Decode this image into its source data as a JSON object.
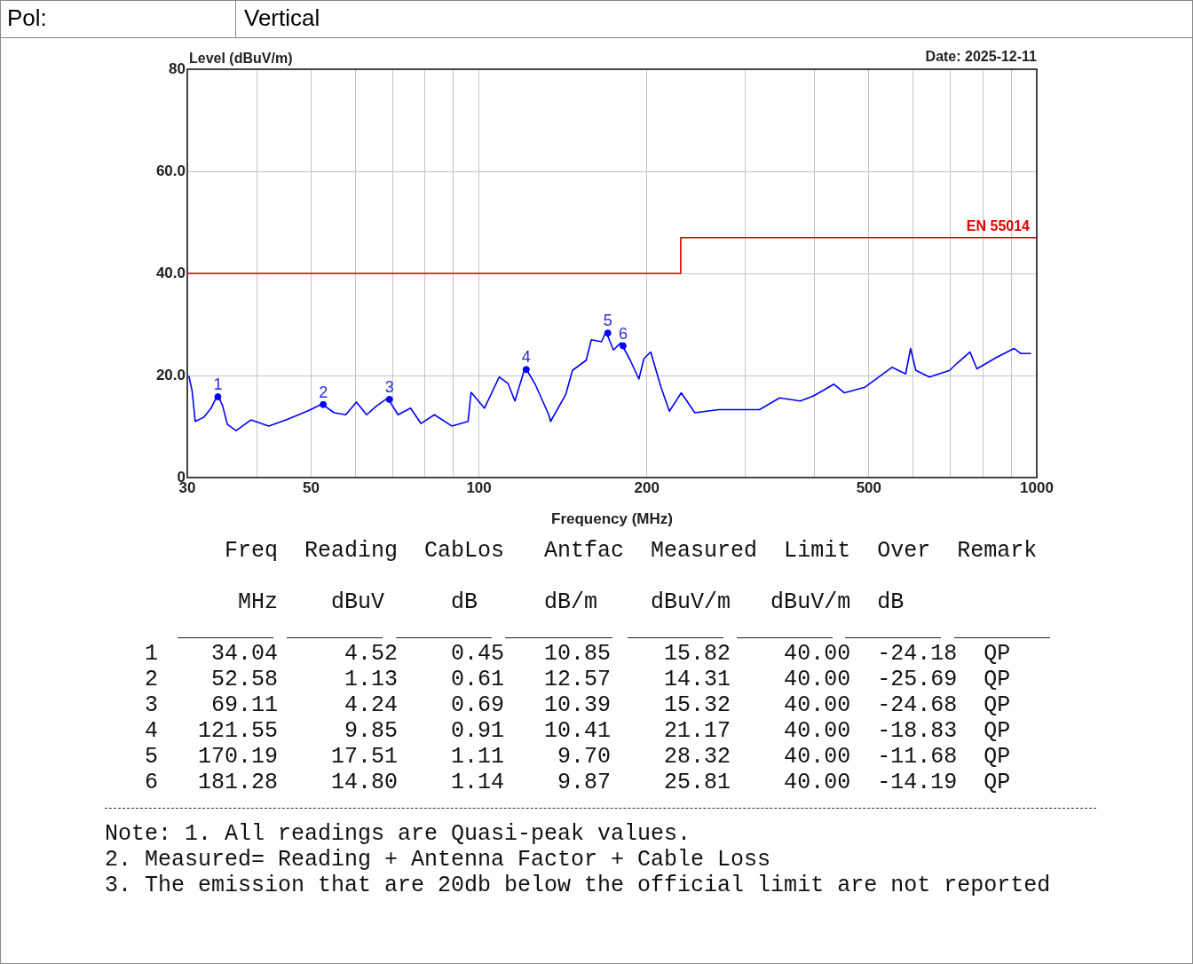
{
  "chart_data": {
    "type": "line",
    "xlabel": "Frequency (MHz)",
    "ylabel": "Level (dBuV/m)",
    "log": "x",
    "grid": true,
    "xlim": [
      30,
      1000
    ],
    "ylim": [
      0,
      80
    ],
    "xticks": [
      30,
      {
        "value": 40,
        "label": null
      },
      50,
      {
        "value": 60,
        "label": null
      },
      {
        "value": 70,
        "label": null
      },
      {
        "value": 80,
        "label": null
      },
      {
        "value": 90,
        "label": null
      },
      100,
      200,
      {
        "value": 300,
        "label": null
      },
      {
        "value": 400,
        "label": null
      },
      500,
      {
        "value": 600,
        "label": null
      },
      {
        "value": 700,
        "label": null
      },
      {
        "value": 800,
        "label": null
      },
      {
        "value": 900,
        "label": null
      },
      1000
    ],
    "yticks": [
      0,
      {
        "value": 20,
        "label": "20.0"
      },
      {
        "value": 40,
        "label": "40.0"
      },
      {
        "value": 60,
        "label": "60.0"
      },
      80
    ],
    "series": [
      {
        "type": "line",
        "color": "#0000ff",
        "x": [
          30.2,
          30.6,
          31.0,
          32.1,
          33.1,
          34.0,
          34.7,
          35.4,
          36.7,
          39.0,
          42.0,
          45.1,
          49.2,
          52.3,
          55.0,
          57.7,
          60.3,
          62.9,
          65.3,
          68.6,
          71.6,
          75.4,
          78.7,
          83.2,
          89.4,
          95.6,
          96.8,
          102.3,
          108.7,
          112.8,
          116.0,
          121.0,
          126.1,
          133.4,
          134.4,
          143.1,
          147.1,
          155.7,
          159.0,
          165.8,
          168.9,
          174.2,
          179.6,
          186.7,
          193.5,
          197.6,
          203.2,
          212,
          219.5,
          230.5,
          243.8,
          269,
          292.6,
          318.3,
          346,
          376.7,
          398,
          433,
          452,
          492,
          550,
          582,
          594,
          607,
          642,
          698,
          718,
          759,
          781,
          849,
          911,
          937,
          977
        ],
        "values": [
          19.9,
          17.0,
          11.0,
          11.8,
          13.6,
          16.2,
          14.1,
          10.4,
          9.2,
          11.3,
          10.1,
          11.3,
          13.0,
          14.4,
          12.7,
          12.3,
          14.8,
          12.3,
          13.9,
          15.6,
          12.3,
          13.6,
          10.6,
          12.3,
          10.1,
          11.0,
          16.7,
          13.6,
          19.7,
          18.4,
          15.0,
          21.6,
          18.3,
          12.3,
          11.0,
          16.3,
          21.0,
          23.0,
          27.0,
          26.6,
          28.6,
          25.0,
          26.4,
          23.0,
          19.3,
          23.3,
          24.6,
          17.7,
          13.0,
          16.6,
          12.7,
          13.3,
          13.3,
          13.3,
          15.6,
          15.0,
          16.0,
          18.3,
          16.6,
          17.7,
          21.6,
          20.3,
          25.3,
          21.0,
          19.7,
          21.0,
          22.3,
          24.6,
          21.3,
          23.6,
          25.3,
          24.3,
          24.3
        ]
      },
      {
        "type": "step",
        "name": "EN 55014",
        "color": "#e00000",
        "x": [
          30,
          230,
          1000
        ],
        "values": [
          40,
          47,
          47
        ]
      },
      {
        "type": "scatter",
        "color": "#0000ff",
        "marker": "circle",
        "x": [
          34.04,
          52.58,
          69.11,
          121.55,
          170.19,
          181.28
        ],
        "values": [
          15.82,
          14.31,
          15.32,
          21.17,
          28.32,
          25.81
        ]
      }
    ],
    "annotations": [
      "Pol:",
      "Vertical",
      "Date: 2025-12-11",
      "         Freq  Reading  CabLos   Antfac  Measured  Limit  Over  Remark",
      "          MHz    dBuV     dB     dB/m    dBuV/m   dBuV/m  dB",
      "   1    34.04     4.52    0.45   10.85    15.82    40.00  -24.18  QP",
      "   2    52.58     1.13    0.61   12.57    14.31    40.00  -25.69  QP",
      "   3    69.11     4.24    0.69   10.39    15.32    40.00  -24.68  QP",
      "   4   121.55     9.85    0.91   10.41    21.17    40.00  -18.83  QP",
      "   5   170.19    17.51    1.11    9.70    28.32    40.00  -11.68  QP",
      "   6   181.28    14.80    1.14    9.87    25.81    40.00  -14.19  QP",
      "Note: 1. All readings are Quasi-peak values.",
      "2. Measured= Reading + Antenna Factor + Cable Loss",
      "3. The emission that are 20db below the official limit are not reported",
      {
        "text": "1",
        "x": 34.04,
        "y": 15.82
      },
      {
        "text": "2",
        "x": 52.58,
        "y": 14.31
      },
      {
        "text": "3",
        "x": 69.11,
        "y": 15.32
      },
      {
        "text": "4",
        "x": 121.55,
        "y": 21.17
      },
      {
        "text": "5",
        "x": 170.19,
        "y": 28.32
      },
      {
        "text": "6",
        "x": 181.28,
        "y": 25.81
      }
    ]
  }
}
